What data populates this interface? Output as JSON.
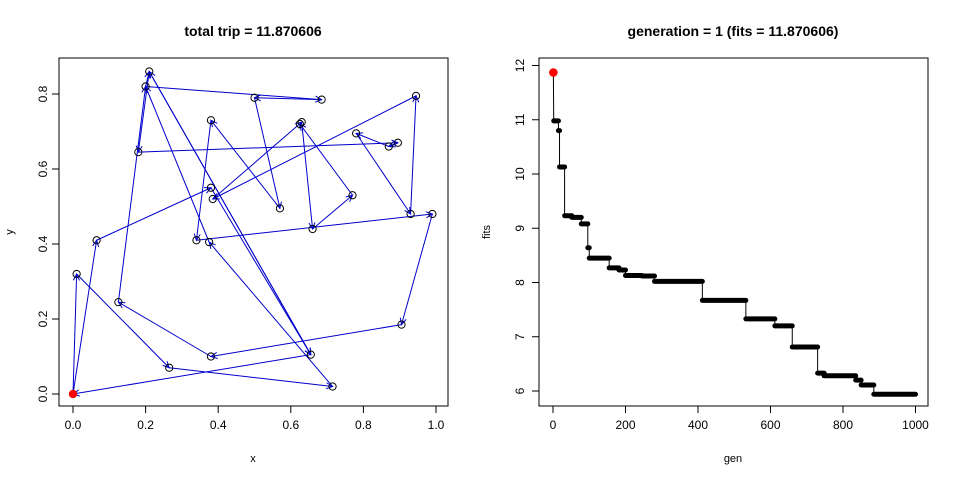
{
  "colors": {
    "route": "#0000cc",
    "start": "#ff0000",
    "points": "#000000"
  },
  "chart_data": [
    {
      "type": "scatter",
      "title": "total trip = 11.870606",
      "xlabel": "x",
      "ylabel": "y",
      "xlim": [
        0,
        1
      ],
      "ylim": [
        0,
        0.86
      ],
      "xticks": [
        "0.0",
        "0.2",
        "0.4",
        "0.6",
        "0.8",
        "1.0"
      ],
      "yticks": [
        "0.0",
        "0.2",
        "0.4",
        "0.6",
        "0.8"
      ],
      "grid": false,
      "start_point": {
        "x": 0.0,
        "y": 0.0
      },
      "route": [
        {
          "x": 0.0,
          "y": 0.0
        },
        {
          "x": 0.065,
          "y": 0.41
        },
        {
          "x": 0.38,
          "y": 0.55
        },
        {
          "x": 0.655,
          "y": 0.105
        },
        {
          "x": 0.0,
          "y": 0.0
        },
        {
          "x": 0.01,
          "y": 0.32
        },
        {
          "x": 0.265,
          "y": 0.07
        },
        {
          "x": 0.715,
          "y": 0.02
        },
        {
          "x": 0.375,
          "y": 0.405
        },
        {
          "x": 0.2,
          "y": 0.82
        },
        {
          "x": 0.685,
          "y": 0.785
        },
        {
          "x": 0.5,
          "y": 0.79
        },
        {
          "x": 0.57,
          "y": 0.495
        },
        {
          "x": 0.38,
          "y": 0.73
        },
        {
          "x": 0.34,
          "y": 0.41
        },
        {
          "x": 0.99,
          "y": 0.48
        },
        {
          "x": 0.905,
          "y": 0.185
        },
        {
          "x": 0.38,
          "y": 0.1
        },
        {
          "x": 0.125,
          "y": 0.245
        },
        {
          "x": 0.2,
          "y": 0.82
        },
        {
          "x": 0.21,
          "y": 0.86
        },
        {
          "x": 0.655,
          "y": 0.105
        },
        {
          "x": 0.21,
          "y": 0.86
        },
        {
          "x": 0.18,
          "y": 0.645
        },
        {
          "x": 0.895,
          "y": 0.67
        },
        {
          "x": 0.87,
          "y": 0.66
        },
        {
          "x": 0.78,
          "y": 0.695
        },
        {
          "x": 0.93,
          "y": 0.48
        },
        {
          "x": 0.945,
          "y": 0.795
        },
        {
          "x": 0.385,
          "y": 0.52
        },
        {
          "x": 0.63,
          "y": 0.725
        },
        {
          "x": 0.66,
          "y": 0.44
        },
        {
          "x": 0.77,
          "y": 0.53
        },
        {
          "x": 0.625,
          "y": 0.72
        }
      ]
    },
    {
      "type": "scatter",
      "title": "generation = 1 (fits = 11.870606)",
      "xlabel": "gen",
      "ylabel": "fits",
      "xlim": [
        0,
        1000
      ],
      "ylim": [
        5.85,
        12.05
      ],
      "xticks": [
        "0",
        "200",
        "400",
        "600",
        "800",
        "1000"
      ],
      "yticks": [
        "6",
        "7",
        "8",
        "9",
        "10",
        "11",
        "12"
      ],
      "grid": false,
      "current": {
        "x": 1,
        "y": 11.870606
      },
      "steps": [
        {
          "x0": 1,
          "x1": 1,
          "y": 11.870606
        },
        {
          "x0": 2,
          "x1": 15,
          "y": 10.98
        },
        {
          "x0": 15,
          "x1": 18,
          "y": 10.8
        },
        {
          "x0": 18,
          "x1": 32,
          "y": 10.13
        },
        {
          "x0": 32,
          "x1": 52,
          "y": 9.23
        },
        {
          "x0": 52,
          "x1": 78,
          "y": 9.2
        },
        {
          "x0": 78,
          "x1": 96,
          "y": 9.08
        },
        {
          "x0": 96,
          "x1": 100,
          "y": 8.64
        },
        {
          "x0": 100,
          "x1": 155,
          "y": 8.45
        },
        {
          "x0": 155,
          "x1": 182,
          "y": 8.27
        },
        {
          "x0": 182,
          "x1": 200,
          "y": 8.23
        },
        {
          "x0": 200,
          "x1": 245,
          "y": 8.13
        },
        {
          "x0": 245,
          "x1": 280,
          "y": 8.12
        },
        {
          "x0": 280,
          "x1": 412,
          "y": 8.02
        },
        {
          "x0": 412,
          "x1": 532,
          "y": 7.67
        },
        {
          "x0": 532,
          "x1": 612,
          "y": 7.33
        },
        {
          "x0": 612,
          "x1": 660,
          "y": 7.2
        },
        {
          "x0": 660,
          "x1": 730,
          "y": 6.81
        },
        {
          "x0": 730,
          "x1": 748,
          "y": 6.33
        },
        {
          "x0": 748,
          "x1": 835,
          "y": 6.28
        },
        {
          "x0": 835,
          "x1": 850,
          "y": 6.2
        },
        {
          "x0": 850,
          "x1": 885,
          "y": 6.11
        },
        {
          "x0": 885,
          "x1": 1000,
          "y": 5.94
        }
      ]
    }
  ]
}
